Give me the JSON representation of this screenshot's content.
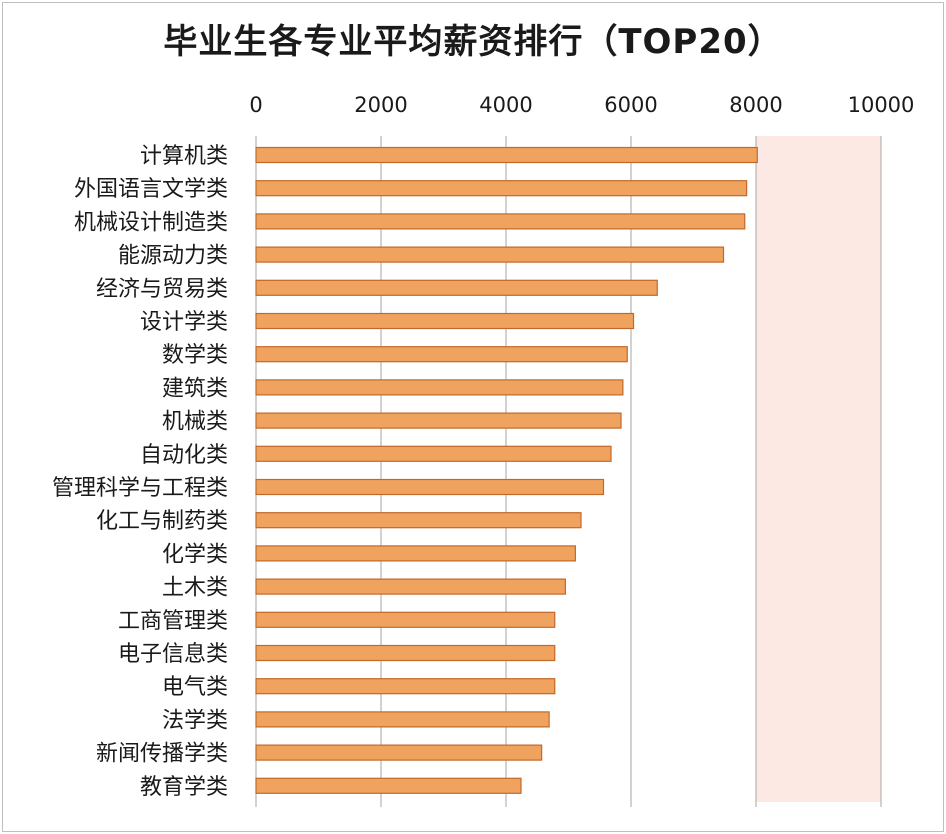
{
  "chart_data": {
    "type": "bar",
    "orientation": "horizontal",
    "title": "毕业生各专业平均薪资排行（TOP20）",
    "categories": [
      "计算机类",
      "外国语言文学类",
      "机械设计制造类",
      "能源动力类",
      "经济与贸易类",
      "设计学类",
      "数学类",
      "建筑类",
      "机械类",
      "自动化类",
      "管理科学与工程类",
      "化工与制药类",
      "化学类",
      "土木类",
      "工商管理类",
      "电子信息类",
      "电气类",
      "法学类",
      "新闻传播学类",
      "教育学类"
    ],
    "values": [
      8020,
      7850,
      7820,
      7480,
      6420,
      6040,
      5940,
      5870,
      5840,
      5680,
      5560,
      5200,
      5110,
      4950,
      4780,
      4780,
      4780,
      4690,
      4570,
      4240
    ],
    "xlim": [
      0,
      10000
    ],
    "xticks": [
      0,
      2000,
      4000,
      6000,
      8000,
      10000
    ],
    "x_axis_position": "top",
    "grid": true,
    "legend": "none",
    "colors": {
      "bar_fill": "#f0a35e",
      "bar_stroke": "#c0692a",
      "plot_bg_band": "#fde9e3",
      "grid": "#a6a6a6"
    }
  }
}
